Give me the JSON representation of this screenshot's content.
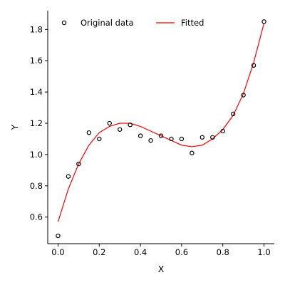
{
  "chart_data": {
    "type": "scatter",
    "xlabel": "X",
    "ylabel": "Y",
    "xlim": [
      -0.05,
      1.05
    ],
    "ylim": [
      0.43,
      1.92
    ],
    "xticks": [
      "0.0",
      "0.2",
      "0.4",
      "0.6",
      "0.8",
      "1.0"
    ],
    "yticks": [
      "0.6",
      "0.8",
      "1.0",
      "1.2",
      "1.4",
      "1.6",
      "1.8"
    ],
    "legend_position": "top-left",
    "legend": [
      {
        "label": "Original data",
        "marker": "circle"
      },
      {
        "label": "Fitted",
        "marker": "line"
      }
    ],
    "series": [
      {
        "name": "Original data",
        "kind": "scatter",
        "color": "#000000",
        "x": [
          0.0,
          0.05,
          0.1,
          0.15,
          0.2,
          0.25,
          0.3,
          0.35,
          0.4,
          0.45,
          0.5,
          0.55,
          0.6,
          0.65,
          0.7,
          0.75,
          0.8,
          0.85,
          0.9,
          0.95,
          1.0
        ],
        "y": [
          0.48,
          0.86,
          0.94,
          1.14,
          1.1,
          1.2,
          1.16,
          1.19,
          1.12,
          1.09,
          1.12,
          1.1,
          1.1,
          1.01,
          1.11,
          1.11,
          1.15,
          1.26,
          1.38,
          1.57,
          1.85
        ]
      },
      {
        "name": "Fitted",
        "kind": "line",
        "color": "#ff0000",
        "x": [
          0.0,
          0.05,
          0.1,
          0.15,
          0.2,
          0.25,
          0.3,
          0.35,
          0.4,
          0.45,
          0.5,
          0.55,
          0.6,
          0.65,
          0.7,
          0.75,
          0.8,
          0.85,
          0.9,
          0.95,
          1.0
        ],
        "y": [
          0.57,
          0.78,
          0.94,
          1.06,
          1.14,
          1.18,
          1.2,
          1.2,
          1.18,
          1.15,
          1.12,
          1.09,
          1.06,
          1.05,
          1.06,
          1.1,
          1.16,
          1.25,
          1.39,
          1.59,
          1.84
        ]
      }
    ]
  }
}
